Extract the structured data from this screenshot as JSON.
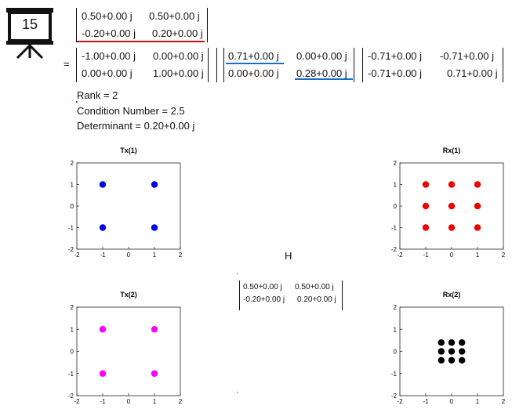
{
  "slide_number": "15",
  "equation": {
    "equals_sign": "=",
    "H": {
      "rows": [
        [
          "0.50+0.00 j",
          "0.50+0.00 j"
        ],
        [
          "-0.20+0.00 j",
          "0.20+0.00 j"
        ]
      ]
    },
    "U": {
      "rows": [
        [
          "-1.00+0.00 j",
          "0.00+0.00 j"
        ],
        [
          "0.00+0.00 j",
          "1.00+0.00 j"
        ]
      ]
    },
    "S": {
      "rows": [
        [
          "0.71+0.00 j",
          "0.00+0.00 j"
        ],
        [
          "0.00+0.00 j",
          "0.28+0.00 j"
        ]
      ]
    },
    "V": {
      "rows": [
        [
          "-0.71+0.00 j",
          "-0.71+0.00 j"
        ],
        [
          "-0.71+0.00 j",
          "0.71+0.00 j"
        ]
      ]
    },
    "underline_colors": {
      "red": "#cc1111",
      "blue": "#1a6fc4"
    }
  },
  "stats": {
    "rank": "Rank = 2",
    "condition_number": "Condition Number = 2.5",
    "determinant": "Determinant = 0.20+0.00 j"
  },
  "channel": {
    "label": "H",
    "rows": [
      [
        "0.50+0.00 j",
        "0.50+0.00 j"
      ],
      [
        "-0.20+0.00 j",
        "0.20+0.00 j"
      ]
    ]
  },
  "chart_data": [
    {
      "type": "scatter",
      "title": "Tx(1)",
      "xlim": [
        -2,
        2
      ],
      "ylim": [
        -2,
        2
      ],
      "ticks": [
        "-2",
        "-1",
        "0",
        "1",
        "2"
      ],
      "color": "#0000ee",
      "points": [
        [
          -1,
          1
        ],
        [
          1,
          1
        ],
        [
          -1,
          -1
        ],
        [
          1,
          -1
        ]
      ]
    },
    {
      "type": "scatter",
      "title": "Rx(1)",
      "xlim": [
        -2,
        2
      ],
      "ylim": [
        -2,
        2
      ],
      "ticks": [
        "-2",
        "-1",
        "0",
        "1",
        "2"
      ],
      "color": "#ee0000",
      "points": [
        [
          -1,
          1
        ],
        [
          0,
          1
        ],
        [
          1,
          1
        ],
        [
          -1,
          0
        ],
        [
          0,
          0
        ],
        [
          1,
          0
        ],
        [
          -1,
          -1
        ],
        [
          0,
          -1
        ],
        [
          1,
          -1
        ]
      ]
    },
    {
      "type": "scatter",
      "title": "Tx(2)",
      "xlim": [
        -2,
        2
      ],
      "ylim": [
        -2,
        2
      ],
      "ticks": [
        "-2",
        "-1",
        "0",
        "1",
        "2"
      ],
      "color": "#ff00ff",
      "points": [
        [
          -1,
          1
        ],
        [
          1,
          1
        ],
        [
          -1,
          -1
        ],
        [
          1,
          -1
        ]
      ]
    },
    {
      "type": "scatter",
      "title": "Rx(2)",
      "xlim": [
        -2,
        2
      ],
      "ylim": [
        -2,
        2
      ],
      "ticks": [
        "-2",
        "-1",
        "0",
        "1",
        "2"
      ],
      "color": "#000000",
      "points": [
        [
          -0.4,
          0.4
        ],
        [
          0,
          0.4
        ],
        [
          0.4,
          0.4
        ],
        [
          -0.4,
          0
        ],
        [
          0,
          0
        ],
        [
          0.4,
          0
        ],
        [
          -0.4,
          -0.4
        ],
        [
          0,
          -0.4
        ],
        [
          0.4,
          -0.4
        ]
      ]
    }
  ]
}
